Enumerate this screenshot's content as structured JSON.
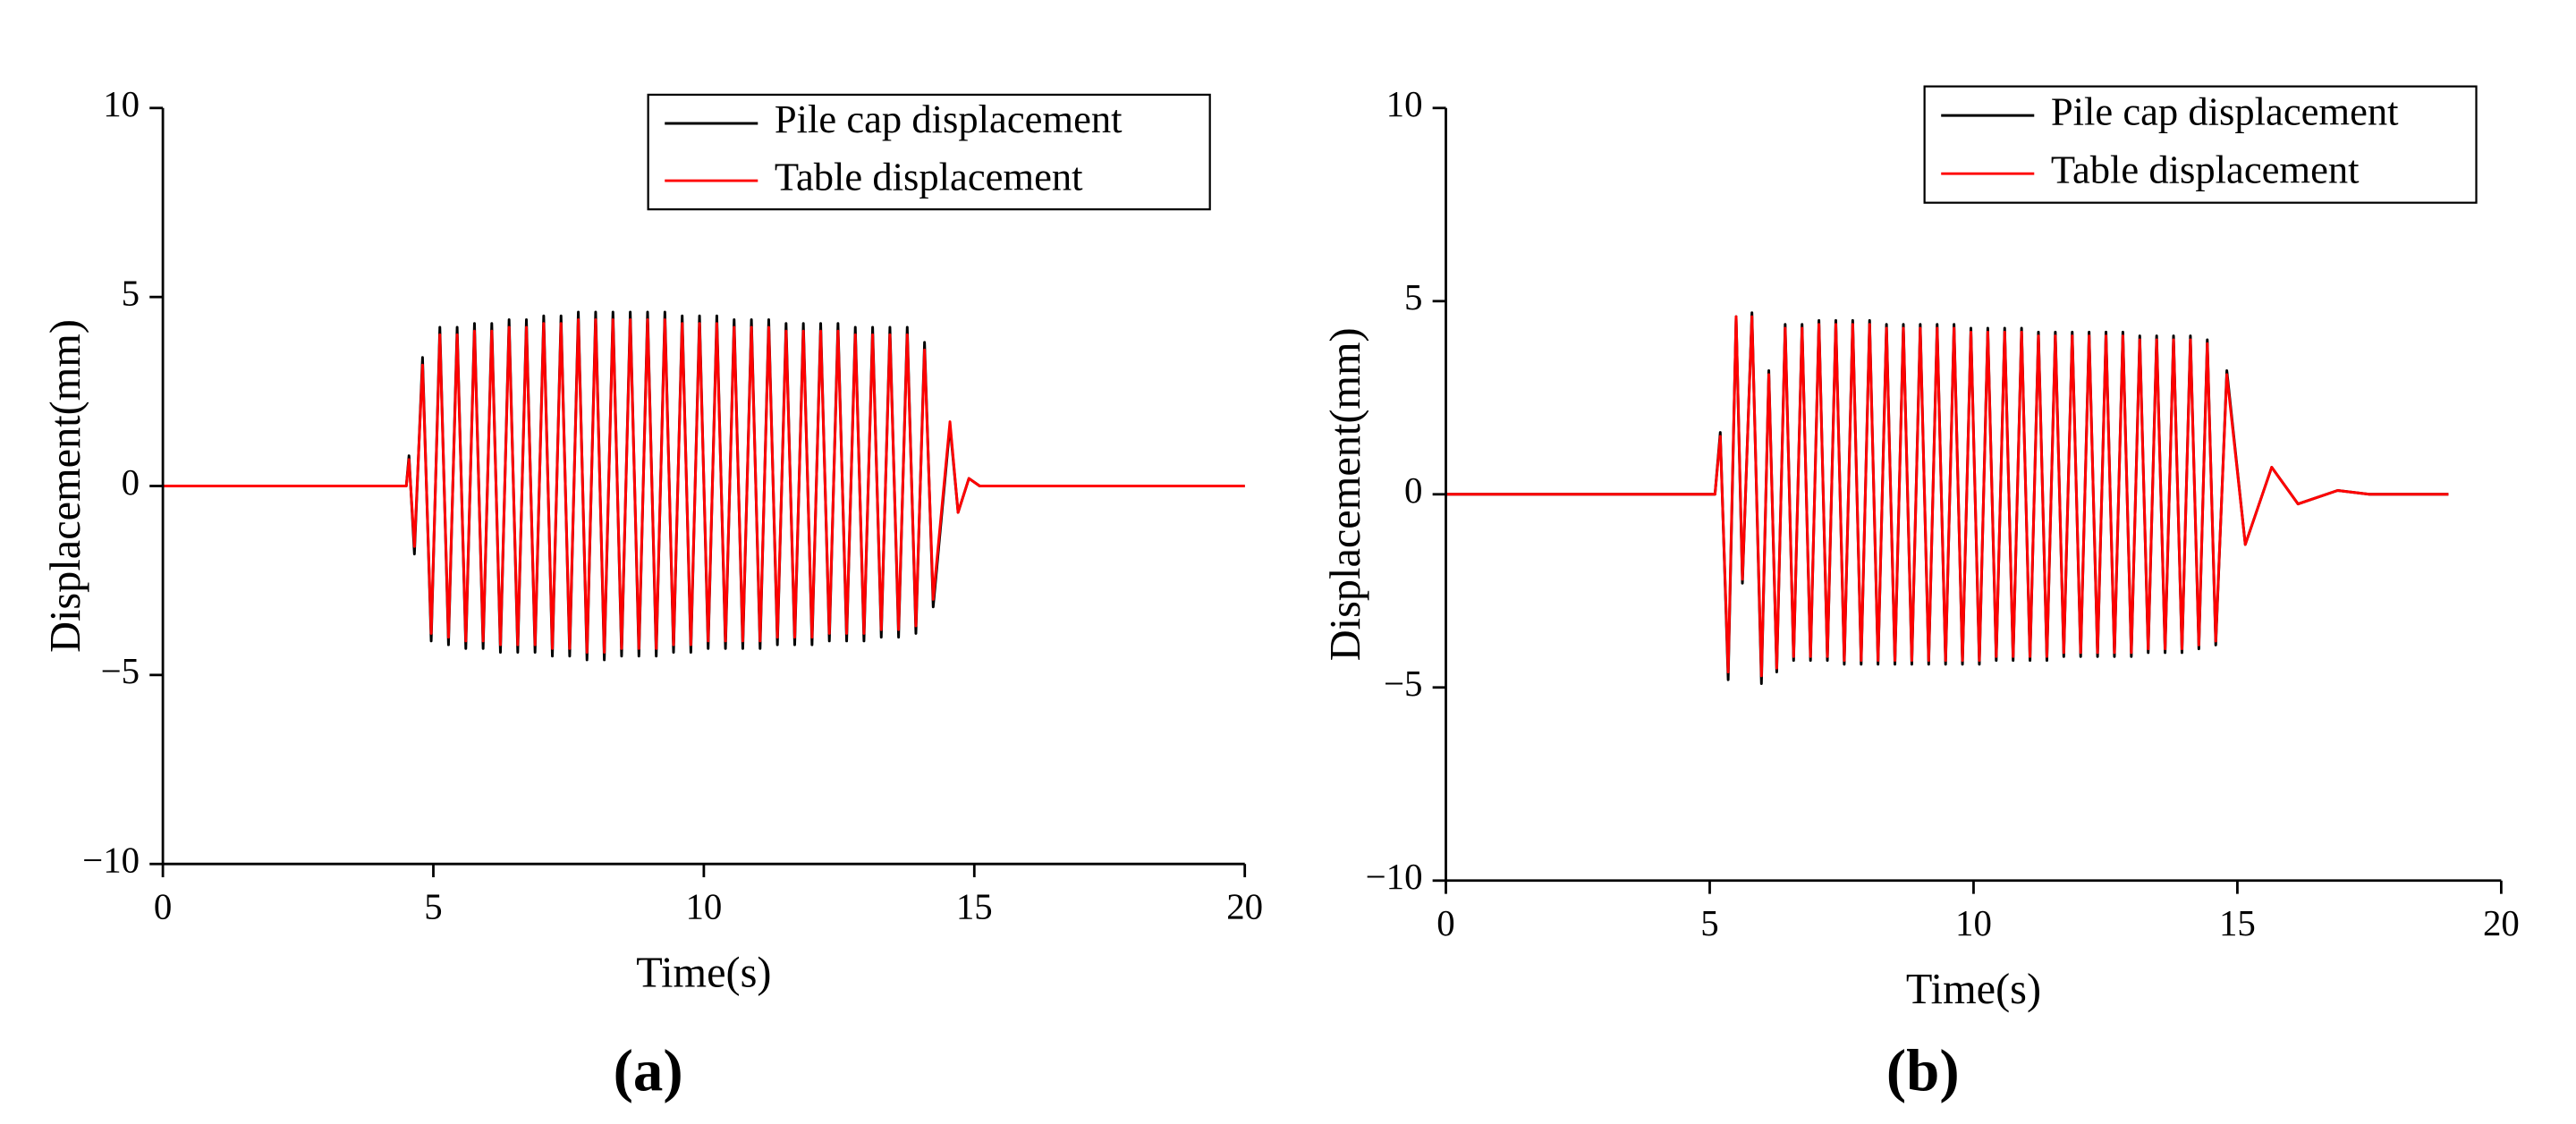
{
  "chart_data": [
    {
      "type": "line",
      "panel_label": "(a)",
      "xlabel": "Time(s)",
      "ylabel": "Displacement(mm)",
      "xlim": [
        0,
        20
      ],
      "ylim": [
        -10,
        10
      ],
      "xticks": [
        0,
        5,
        10,
        15,
        20
      ],
      "yticks": [
        {
          "value": -10,
          "label": "−10"
        },
        {
          "value": -5,
          "label": "−5"
        },
        0,
        5,
        10
      ],
      "legend": "upper right",
      "x": [
        0,
        4.5,
        4.55,
        4.65,
        4.8,
        4.96,
        5.12,
        5.28,
        5.44,
        5.6,
        5.76,
        5.92,
        6.08,
        6.24,
        6.4,
        6.56,
        6.72,
        6.88,
        7.04,
        7.2,
        7.36,
        7.52,
        7.68,
        7.84,
        8,
        8.16,
        8.32,
        8.48,
        8.64,
        8.8,
        8.96,
        9.12,
        9.28,
        9.44,
        9.6,
        9.76,
        9.92,
        10.08,
        10.24,
        10.4,
        10.56,
        10.72,
        10.88,
        11.04,
        11.2,
        11.36,
        11.52,
        11.68,
        11.84,
        12,
        12.16,
        12.32,
        12.48,
        12.64,
        12.8,
        12.96,
        13.12,
        13.28,
        13.44,
        13.6,
        13.76,
        13.92,
        14.08,
        14.24,
        14.55,
        14.7,
        14.9,
        15.1,
        20
      ],
      "series": [
        {
          "name": "Pile cap displacement",
          "color": "#000000",
          "values": [
            0,
            0,
            0.8,
            -1.8,
            3.4,
            -4.1,
            4.2,
            -4.2,
            4.2,
            -4.3,
            4.3,
            -4.3,
            4.3,
            -4.4,
            4.4,
            -4.4,
            4.4,
            -4.4,
            4.5,
            -4.5,
            4.5,
            -4.5,
            4.6,
            -4.6,
            4.6,
            -4.6,
            4.6,
            -4.5,
            4.6,
            -4.5,
            4.6,
            -4.5,
            4.6,
            -4.4,
            4.5,
            -4.4,
            4.5,
            -4.3,
            4.5,
            -4.3,
            4.4,
            -4.3,
            4.4,
            -4.3,
            4.4,
            -4.2,
            4.3,
            -4.2,
            4.3,
            -4.2,
            4.3,
            -4.1,
            4.3,
            -4.1,
            4.2,
            -4.1,
            4.2,
            -4.0,
            4.2,
            -4.0,
            4.2,
            -3.9,
            3.8,
            -3.2,
            1.6,
            -0.7,
            0.2,
            0,
            0
          ]
        },
        {
          "name": "Table displacement",
          "color": "#ff0000",
          "values": [
            0,
            0,
            0.7,
            -1.6,
            3.2,
            -3.9,
            4.0,
            -4.0,
            4.0,
            -4.1,
            4.1,
            -4.1,
            4.1,
            -4.2,
            4.2,
            -4.2,
            4.2,
            -4.2,
            4.3,
            -4.3,
            4.3,
            -4.3,
            4.4,
            -4.4,
            4.4,
            -4.4,
            4.4,
            -4.3,
            4.4,
            -4.3,
            4.4,
            -4.3,
            4.4,
            -4.2,
            4.3,
            -4.2,
            4.3,
            -4.1,
            4.3,
            -4.1,
            4.2,
            -4.1,
            4.2,
            -4.1,
            4.2,
            -4.0,
            4.1,
            -4.0,
            4.1,
            -4.0,
            4.1,
            -3.9,
            4.1,
            -3.9,
            4.0,
            -3.9,
            4.0,
            -3.8,
            4.0,
            -3.8,
            4.0,
            -3.7,
            3.6,
            -3.0,
            1.7,
            -0.7,
            0.2,
            0,
            0
          ]
        }
      ]
    },
    {
      "type": "line",
      "panel_label": "(b)",
      "xlabel": "Time(s)",
      "ylabel": "Displacement(mm)",
      "xlim": [
        0,
        20
      ],
      "ylim": [
        -10,
        10
      ],
      "xticks": [
        0,
        5,
        10,
        15,
        20
      ],
      "yticks": [
        {
          "value": -10,
          "label": "−10"
        },
        {
          "value": -5,
          "label": "−5"
        },
        0,
        5,
        10
      ],
      "legend": "upper right",
      "x": [
        0,
        5.1,
        5.2,
        5.35,
        5.5,
        5.62,
        5.8,
        5.98,
        6.12,
        6.27,
        6.43,
        6.59,
        6.75,
        6.91,
        7.07,
        7.23,
        7.39,
        7.55,
        7.71,
        7.87,
        8.03,
        8.19,
        8.35,
        8.51,
        8.67,
        8.83,
        8.99,
        9.15,
        9.31,
        9.47,
        9.63,
        9.79,
        9.95,
        10.11,
        10.27,
        10.43,
        10.59,
        10.75,
        10.91,
        11.07,
        11.23,
        11.39,
        11.55,
        11.71,
        11.87,
        12.03,
        12.19,
        12.35,
        12.51,
        12.67,
        12.83,
        12.99,
        13.15,
        13.31,
        13.47,
        13.63,
        13.79,
        13.95,
        14.11,
        14.27,
        14.43,
        14.59,
        14.8,
        15.15,
        15.65,
        16.15,
        16.9,
        17.5,
        19
      ],
      "series": [
        {
          "name": "Pile cap displacement",
          "color": "#000000",
          "values": [
            0,
            0,
            1.6,
            -4.8,
            4.6,
            -2.3,
            4.7,
            -4.9,
            3.2,
            -4.6,
            4.4,
            -4.3,
            4.4,
            -4.3,
            4.5,
            -4.3,
            4.5,
            -4.4,
            4.5,
            -4.4,
            4.5,
            -4.4,
            4.4,
            -4.4,
            4.4,
            -4.4,
            4.4,
            -4.4,
            4.4,
            -4.4,
            4.4,
            -4.4,
            4.3,
            -4.4,
            4.3,
            -4.3,
            4.3,
            -4.3,
            4.3,
            -4.3,
            4.2,
            -4.3,
            4.2,
            -4.2,
            4.2,
            -4.2,
            4.2,
            -4.2,
            4.2,
            -4.2,
            4.2,
            -4.2,
            4.1,
            -4.1,
            4.1,
            -4.1,
            4.1,
            -4.1,
            4.1,
            -4.0,
            4.0,
            -3.9,
            3.2,
            -1.3,
            0.7,
            -0.25,
            0.1,
            0,
            0
          ]
        },
        {
          "name": "Table displacement",
          "color": "#ff0000",
          "values": [
            0,
            0,
            1.5,
            -4.6,
            4.6,
            -2.2,
            4.6,
            -4.7,
            3.1,
            -4.5,
            4.3,
            -4.2,
            4.3,
            -4.2,
            4.4,
            -4.2,
            4.4,
            -4.3,
            4.4,
            -4.3,
            4.4,
            -4.3,
            4.3,
            -4.3,
            4.3,
            -4.3,
            4.3,
            -4.3,
            4.3,
            -4.3,
            4.3,
            -4.3,
            4.2,
            -4.3,
            4.2,
            -4.2,
            4.2,
            -4.2,
            4.2,
            -4.2,
            4.1,
            -4.2,
            4.1,
            -4.1,
            4.1,
            -4.1,
            4.1,
            -4.1,
            4.1,
            -4.1,
            4.1,
            -4.1,
            4.0,
            -4.0,
            4.0,
            -4.0,
            4.0,
            -4.0,
            4.0,
            -3.9,
            3.9,
            -3.8,
            3.1,
            -1.3,
            0.7,
            -0.25,
            0.1,
            0,
            0
          ]
        }
      ]
    }
  ]
}
